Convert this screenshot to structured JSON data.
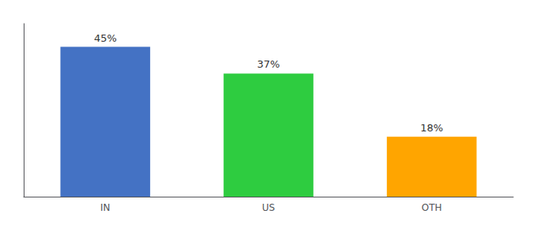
{
  "chart_data": {
    "type": "bar",
    "categories": [
      "IN",
      "US",
      "OTH"
    ],
    "values": [
      45,
      37,
      18
    ],
    "value_labels": [
      "45%",
      "37%",
      "18%"
    ],
    "colors": [
      "#4472C4",
      "#2ECC40",
      "#FFA500"
    ],
    "ylim": [
      0,
      52
    ],
    "grid": false,
    "data_labels": true,
    "tick_labels": "x"
  }
}
